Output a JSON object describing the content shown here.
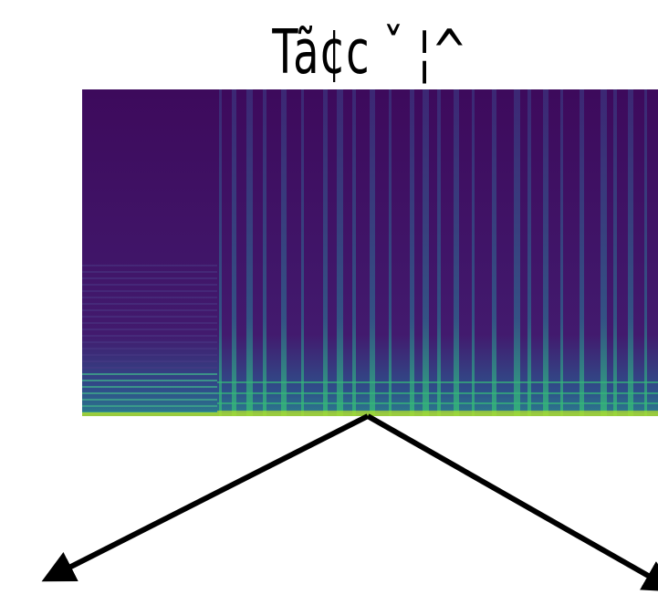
{
  "title": "Tã¢c ˇ ¦^"
}
